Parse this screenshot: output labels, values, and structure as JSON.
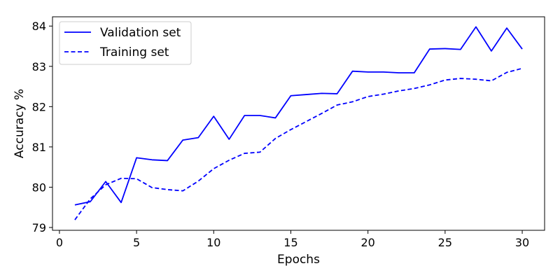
{
  "chart_data": {
    "type": "line",
    "title": "",
    "xlabel": "Epochs",
    "ylabel": "Accuracy %",
    "xlim": [
      -0.45,
      31.45
    ],
    "ylim": [
      78.93,
      84.23
    ],
    "xticks": [
      0,
      5,
      10,
      15,
      20,
      25,
      30
    ],
    "yticks": [
      79,
      80,
      81,
      82,
      83,
      84
    ],
    "grid": false,
    "legend_position": "top-left",
    "x": [
      1,
      2,
      3,
      4,
      5,
      6,
      7,
      8,
      9,
      10,
      11,
      12,
      13,
      14,
      15,
      16,
      17,
      18,
      19,
      20,
      21,
      22,
      23,
      24,
      25,
      26,
      27,
      28,
      29,
      30
    ],
    "series": [
      {
        "name": "Validation set",
        "color": "#0000ff",
        "style": "solid",
        "values": [
          79.56,
          79.64,
          80.14,
          79.62,
          80.73,
          80.68,
          80.66,
          81.17,
          81.23,
          81.76,
          81.19,
          81.78,
          81.78,
          81.72,
          82.27,
          82.3,
          82.33,
          82.32,
          82.88,
          82.86,
          82.86,
          82.84,
          82.84,
          83.43,
          83.44,
          83.42,
          83.98,
          83.38,
          83.95,
          83.43
        ]
      },
      {
        "name": "Training set",
        "color": "#0000ff",
        "style": "dashed",
        "values": [
          79.19,
          79.71,
          80.06,
          80.22,
          80.21,
          79.99,
          79.94,
          79.91,
          80.15,
          80.46,
          80.67,
          80.84,
          80.87,
          81.21,
          81.43,
          81.63,
          81.83,
          82.04,
          82.12,
          82.25,
          82.31,
          82.39,
          82.45,
          82.54,
          82.66,
          82.7,
          82.68,
          82.64,
          82.85,
          82.95
        ]
      }
    ]
  }
}
